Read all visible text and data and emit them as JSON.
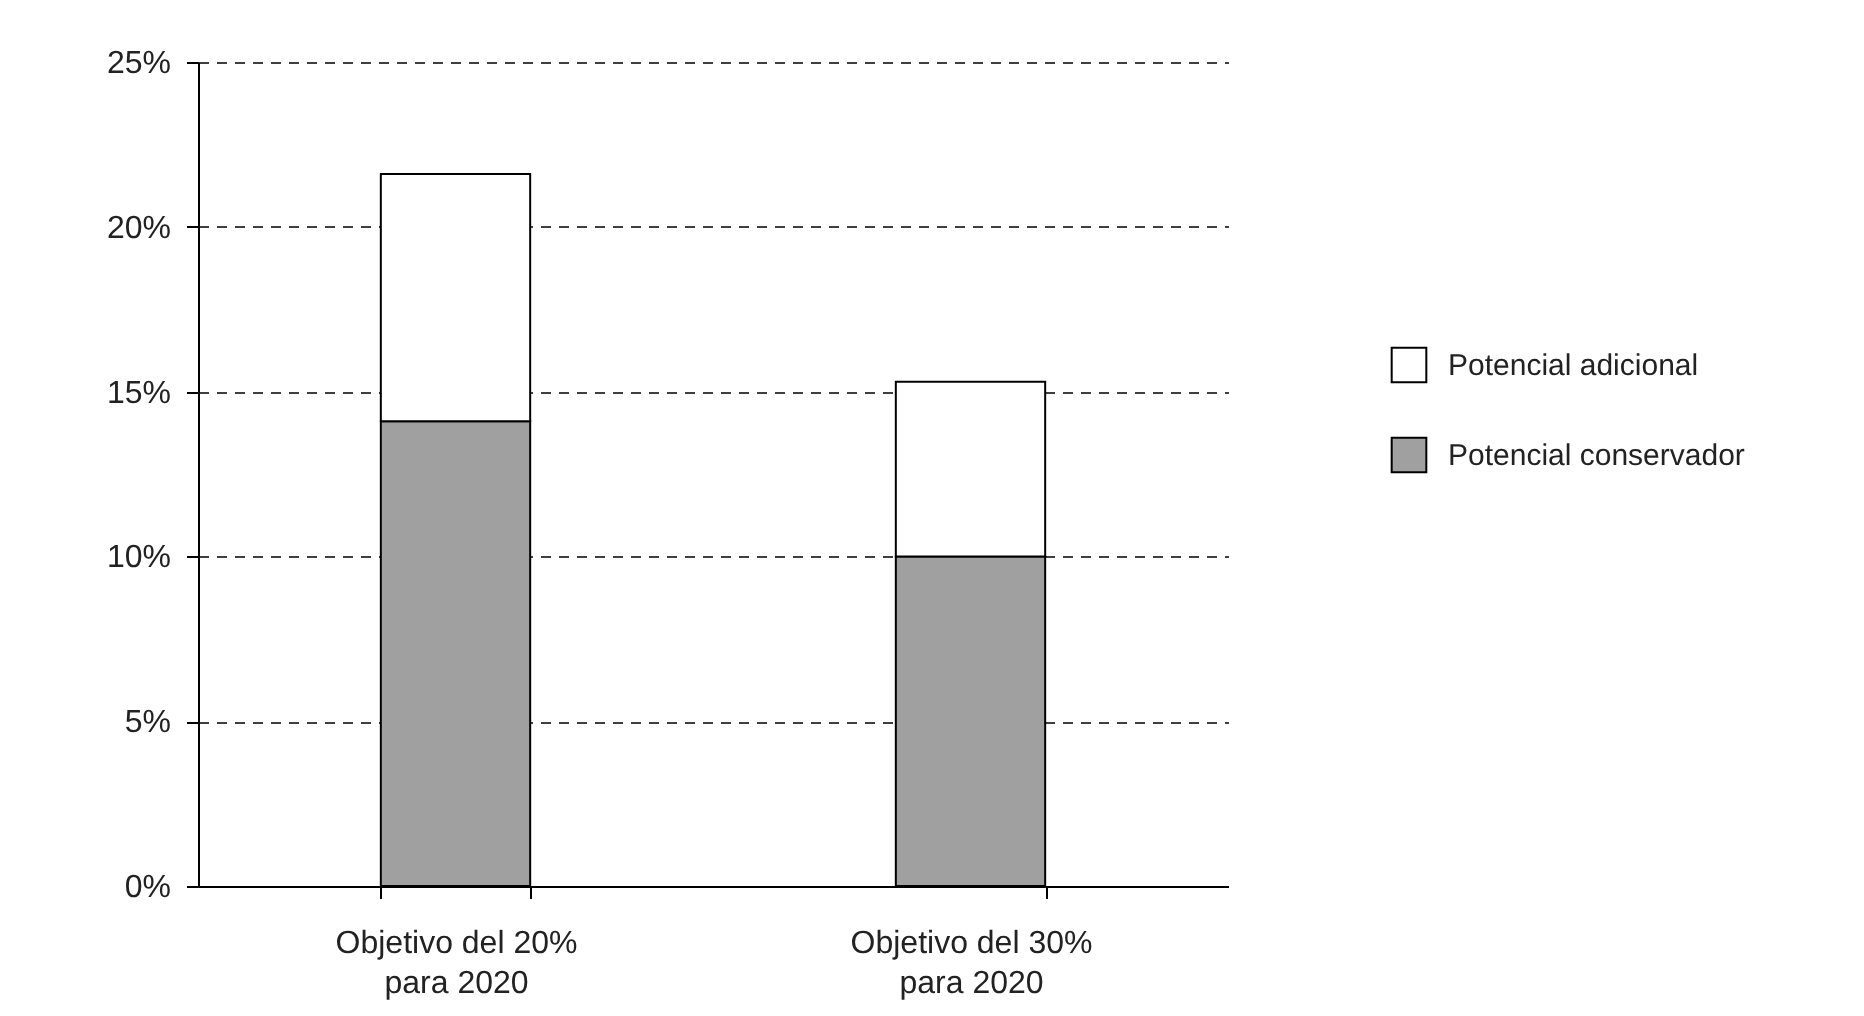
{
  "chart_data": {
    "type": "bar",
    "stacked": true,
    "categories": [
      "Objetivo del 20% para 2020",
      "Objetivo del 30% para 2020"
    ],
    "series": [
      {
        "name": "Potencial conservador",
        "color": "#a0a0a0",
        "values": [
          14.1,
          10.0
        ]
      },
      {
        "name": "Potencial adicional",
        "color": "#ffffff",
        "values": [
          7.5,
          5.3
        ]
      }
    ],
    "ylim": [
      0,
      25
    ],
    "yticks": [
      {
        "value": 0,
        "label": "0%"
      },
      {
        "value": 5,
        "label": "5%"
      },
      {
        "value": 10,
        "label": "10%"
      },
      {
        "value": 15,
        "label": "15%"
      },
      {
        "value": 20,
        "label": "20%"
      },
      {
        "value": 25,
        "label": "25%"
      }
    ],
    "grid": "y",
    "legend": "right"
  }
}
